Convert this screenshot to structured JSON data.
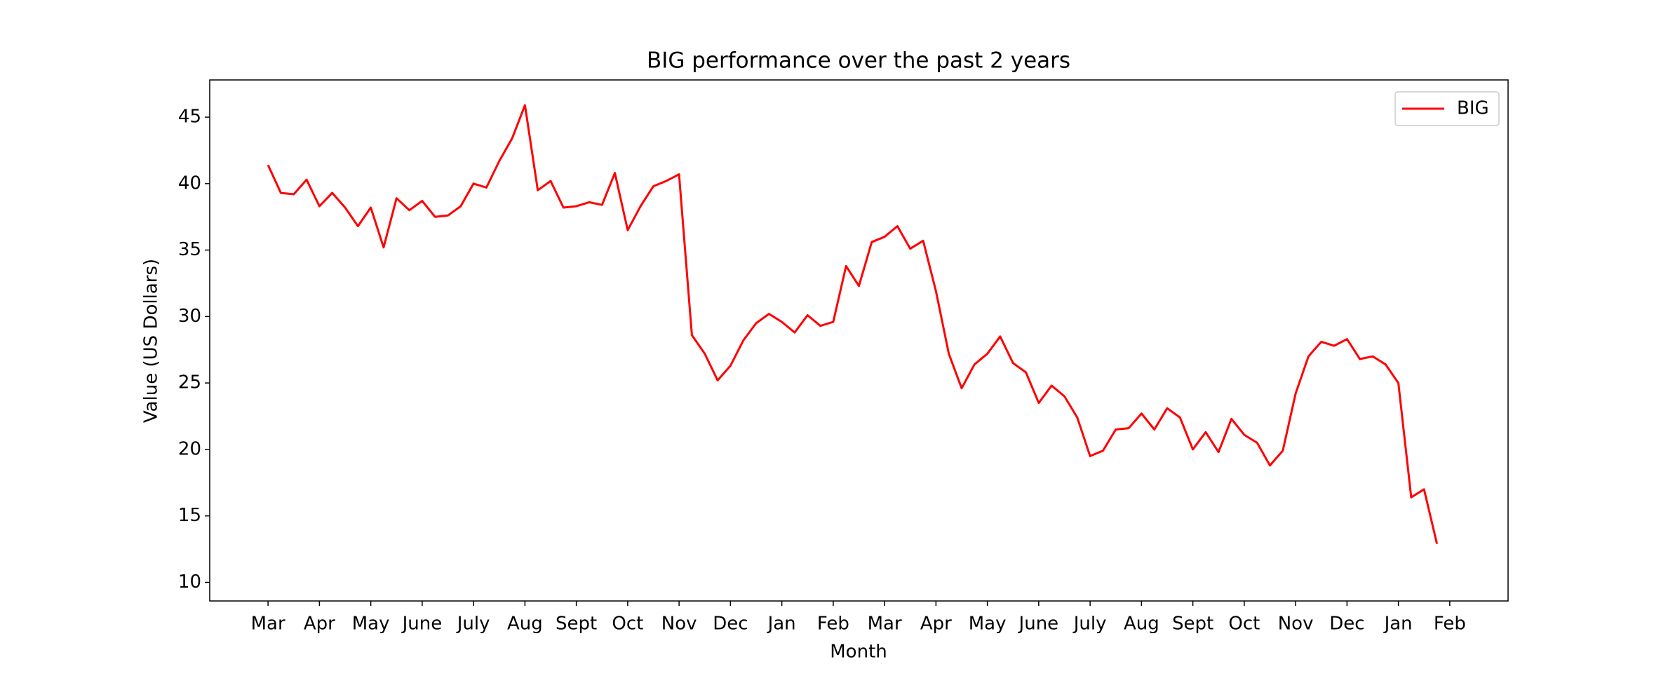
{
  "chart_data": {
    "type": "line",
    "title": "BIG performance over the past 2 years",
    "xlabel": "Month",
    "ylabel": "Value (US Dollars)",
    "categories": [
      "Mar",
      null,
      null,
      null,
      "Apr",
      null,
      null,
      null,
      "May",
      null,
      null,
      null,
      "June",
      null,
      null,
      null,
      "July",
      null,
      null,
      null,
      "Aug",
      null,
      null,
      null,
      "Sept",
      null,
      null,
      null,
      "Oct",
      null,
      null,
      null,
      "Nov",
      null,
      null,
      null,
      "Dec",
      null,
      null,
      null,
      "Jan",
      null,
      null,
      null,
      "Feb",
      null,
      null,
      null,
      "Mar",
      null,
      null,
      null,
      "Apr",
      null,
      null,
      null,
      "May",
      null,
      null,
      null,
      "June",
      null,
      null,
      null,
      "July",
      null,
      null,
      null,
      "Aug",
      null,
      null,
      null,
      "Sept",
      null,
      null,
      null,
      "Oct",
      null,
      null,
      null,
      "Nov",
      null,
      null,
      null,
      "Dec",
      null,
      null,
      null,
      "Jan",
      null,
      null,
      null,
      "Feb"
    ],
    "series": [
      {
        "name": "BIG",
        "color": "#ff0000",
        "values": [
          41.4,
          39.3,
          39.2,
          40.3,
          38.3,
          39.3,
          38.2,
          36.8,
          38.2,
          35.2,
          38.9,
          38.0,
          38.7,
          37.5,
          37.6,
          38.3,
          40.0,
          39.7,
          41.7,
          43.4,
          45.9,
          39.5,
          40.2,
          38.2,
          38.3,
          38.6,
          38.4,
          40.8,
          36.5,
          38.3,
          39.8,
          40.2,
          40.7,
          28.6,
          27.2,
          25.2,
          26.3,
          28.2,
          29.5,
          30.2,
          29.6,
          28.8,
          30.1,
          29.3,
          29.6,
          33.8,
          32.3,
          35.6,
          36.0,
          36.8,
          35.1,
          35.7,
          31.9,
          27.2,
          24.6,
          26.4,
          27.2,
          28.5,
          26.5,
          25.8,
          23.5,
          24.8,
          24.0,
          22.4,
          19.5,
          19.9,
          21.5,
          21.6,
          22.7,
          21.5,
          23.1,
          22.4,
          20.0,
          21.3,
          19.8,
          22.3,
          21.1,
          20.5,
          18.8,
          19.9,
          24.2,
          27.0,
          28.1,
          27.8,
          28.3,
          26.8,
          27.0,
          26.4,
          25.0,
          16.4,
          17.0,
          12.9,
          null
        ]
      }
    ],
    "ylim": [
      8.6,
      47.8
    ],
    "yticks": [
      10,
      15,
      20,
      25,
      30,
      35,
      40,
      45
    ],
    "legend": "upper right"
  }
}
